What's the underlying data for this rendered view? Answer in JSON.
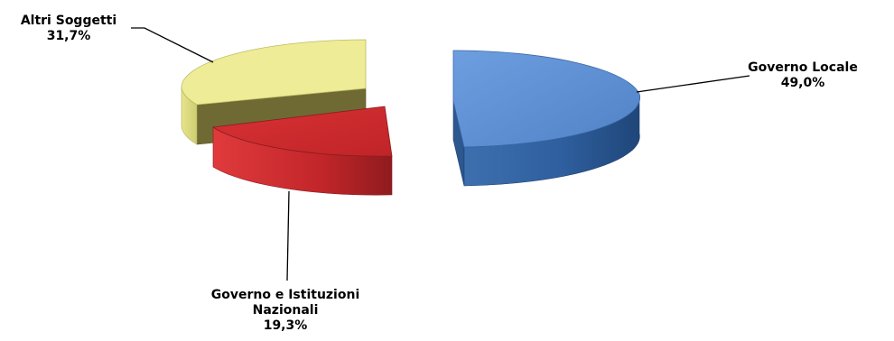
{
  "chart_data": {
    "type": "pie",
    "title": "",
    "slices": [
      {
        "name": "Governo Locale",
        "value": 49.0,
        "label": "49,0%",
        "color": "#5b8fd0"
      },
      {
        "name": "Governo e Istituzioni Nazionali",
        "value": 19.3,
        "label": "19,3%",
        "color": "#cc2a2e"
      },
      {
        "name": "Altri Soggetti",
        "value": 31.7,
        "label": "31,7%",
        "color": "#ece992"
      }
    ],
    "labels": {
      "locale": {
        "line1": "Governo Locale",
        "line2": "49,0%"
      },
      "nazionali": {
        "line1": "Governo e Istituzioni",
        "line2": "Nazionali",
        "line3": "19,3%"
      },
      "altri": {
        "line1": "Altri Soggetti",
        "line2": "31,7%"
      }
    },
    "style": "3d-exploded"
  }
}
